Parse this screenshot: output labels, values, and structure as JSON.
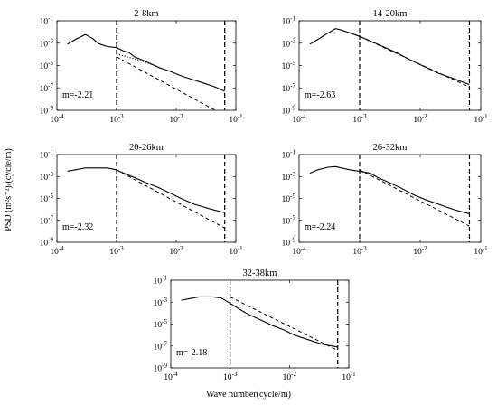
{
  "ylabel": "PSD (m²s⁻²)/(cycle/m)",
  "xlabel": "Wave number(cycle/m)",
  "chart_data": [
    {
      "type": "line",
      "title": "2-8km",
      "slope_label": "m=-2.21",
      "xscale": "log",
      "yscale": "log",
      "xlim": [
        0.0001,
        0.1
      ],
      "ylim": [
        1e-09,
        0.1
      ],
      "x_ticks": [
        "10^-4",
        "10^-3",
        "10^-2",
        "10^-1"
      ],
      "y_ticks": [
        "10^-9",
        "10^-7",
        "10^-5",
        "10^-3",
        "10^-1"
      ],
      "vlines": [
        0.001,
        0.065
      ],
      "series": [
        {
          "style": "solid",
          "x": [
            0.00015,
            0.0002,
            0.0003,
            0.0004,
            0.0005,
            0.0007,
            0.001,
            0.0013,
            0.0016,
            0.002,
            0.003,
            0.005,
            0.008,
            0.012,
            0.02,
            0.03,
            0.045,
            0.065
          ],
          "y": [
            0.0008,
            0.002,
            0.006,
            0.0025,
            0.0009,
            0.0005,
            0.0004,
            0.0002,
            0.00015,
            6e-05,
            2.5e-05,
            7e-06,
            3e-06,
            1.2e-06,
            5e-07,
            2.5e-07,
            1.2e-07,
            5e-08
          ]
        },
        {
          "style": "dotted",
          "x": [
            0.001,
            0.0015,
            0.002,
            0.003,
            0.005
          ],
          "y": [
            0.00011,
            6e-05,
            4e-05,
            2e-05,
            8e-06
          ]
        },
        {
          "style": "dashed",
          "x": [
            0.001,
            0.045
          ],
          "y": [
            6e-05,
            1e-09
          ]
        }
      ]
    },
    {
      "type": "line",
      "title": "14-20km",
      "slope_label": "m=-2.63",
      "xscale": "log",
      "yscale": "log",
      "xlim": [
        0.0001,
        0.1
      ],
      "ylim": [
        1e-09,
        0.1
      ],
      "x_ticks": [
        "10^-4",
        "10^-3",
        "10^-2",
        "10^-1"
      ],
      "y_ticks": [
        "10^-9",
        "10^-7",
        "10^-5",
        "10^-3",
        "10^-1"
      ],
      "vlines": [
        0.001,
        0.065
      ],
      "series": [
        {
          "style": "solid",
          "x": [
            0.00015,
            0.0002,
            0.0003,
            0.0004,
            0.0005,
            0.0007,
            0.001,
            0.002,
            0.004,
            0.007,
            0.01,
            0.02,
            0.035,
            0.065
          ],
          "y": [
            0.0008,
            0.002,
            0.008,
            0.02,
            0.015,
            0.008,
            0.004,
            0.0008,
            0.00015,
            3e-05,
            1.2e-05,
            2e-06,
            7e-07,
            2e-07
          ]
        },
        {
          "style": "dashed",
          "x": [
            0.001,
            0.065
          ],
          "y": [
            0.004,
            1.2e-07
          ]
        }
      ]
    },
    {
      "type": "line",
      "title": "20-26km",
      "slope_label": "m=-2.32",
      "xscale": "log",
      "yscale": "log",
      "xlim": [
        0.0001,
        0.1
      ],
      "ylim": [
        1e-09,
        0.1
      ],
      "x_ticks": [
        "10^-4",
        "10^-3",
        "10^-2",
        "10^-1"
      ],
      "y_ticks": [
        "10^-9",
        "10^-7",
        "10^-5",
        "10^-3",
        "10^-1"
      ],
      "vlines": [
        0.001,
        0.065
      ],
      "series": [
        {
          "style": "solid",
          "x": [
            0.00015,
            0.0002,
            0.0003,
            0.0005,
            0.0007,
            0.001,
            0.0015,
            0.002,
            0.003,
            0.005,
            0.008,
            0.012,
            0.02,
            0.035,
            0.065
          ],
          "y": [
            0.003,
            0.004,
            0.006,
            0.006,
            0.006,
            0.004,
            0.0015,
            0.0008,
            0.0003,
            0.0001,
            3e-05,
            1e-05,
            3e-06,
            1.2e-06,
            5e-07
          ]
        },
        {
          "style": "dashed",
          "x": [
            0.001,
            0.065
          ],
          "y": [
            0.004,
            2e-08
          ]
        }
      ]
    },
    {
      "type": "line",
      "title": "26-32km",
      "slope_label": "m=-2.24",
      "xscale": "log",
      "yscale": "log",
      "xlim": [
        0.0001,
        0.1
      ],
      "ylim": [
        1e-09,
        0.1
      ],
      "x_ticks": [
        "10^-4",
        "10^-3",
        "10^-2",
        "10^-1"
      ],
      "y_ticks": [
        "10^-9",
        "10^-7",
        "10^-5",
        "10^-3",
        "10^-1"
      ],
      "vlines": [
        0.001,
        0.065
      ],
      "series": [
        {
          "style": "solid",
          "x": [
            0.00015,
            0.0002,
            0.0003,
            0.0004,
            0.0005,
            0.0007,
            0.001,
            0.0015,
            0.002,
            0.003,
            0.005,
            0.008,
            0.012,
            0.02,
            0.035,
            0.065
          ],
          "y": [
            0.002,
            0.004,
            0.007,
            0.008,
            0.006,
            0.004,
            0.003,
            0.002,
            0.0008,
            0.0003,
            8e-05,
            2e-05,
            8e-06,
            3e-06,
            1e-06,
            4e-07
          ]
        },
        {
          "style": "dashed",
          "x": [
            0.001,
            0.065
          ],
          "y": [
            0.004,
            3e-08
          ]
        }
      ]
    },
    {
      "type": "line",
      "title": "32-38km",
      "slope_label": "m=-2.18",
      "xscale": "log",
      "yscale": "log",
      "xlim": [
        0.0001,
        0.1
      ],
      "ylim": [
        1e-09,
        0.1
      ],
      "x_ticks": [
        "10^-4",
        "10^-3",
        "10^-2",
        "10^-1"
      ],
      "y_ticks": [
        "10^-9",
        "10^-7",
        "10^-5",
        "10^-3",
        "10^-1"
      ],
      "vlines": [
        0.001,
        0.065
      ],
      "series": [
        {
          "style": "solid",
          "x": [
            0.00015,
            0.0002,
            0.0003,
            0.0005,
            0.0007,
            0.001,
            0.0015,
            0.002,
            0.003,
            0.005,
            0.008,
            0.012,
            0.02,
            0.035,
            0.065
          ],
          "y": [
            0.0015,
            0.002,
            0.003,
            0.003,
            0.0025,
            0.0008,
            0.0002,
            8e-05,
            3e-05,
            8e-06,
            3e-06,
            1e-06,
            4e-07,
            1.5e-07,
            8e-08
          ]
        },
        {
          "style": "dashed",
          "x": [
            0.001,
            0.065
          ],
          "y": [
            0.003,
            4e-08
          ]
        }
      ]
    }
  ]
}
